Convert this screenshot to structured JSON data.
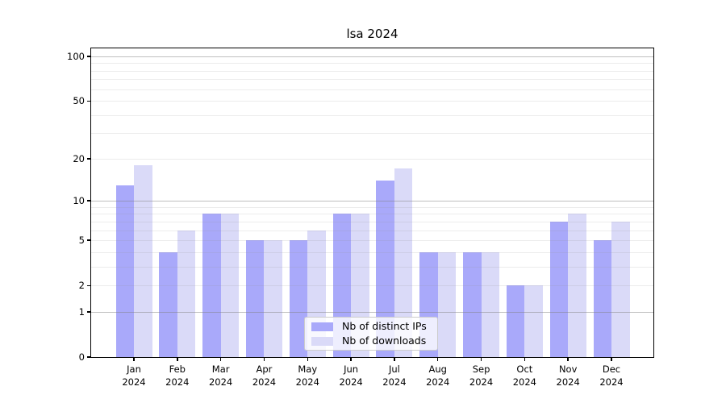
{
  "chart_data": {
    "type": "bar",
    "title": "lsa 2024",
    "categories": [
      "Jan",
      "Feb",
      "Mar",
      "Apr",
      "May",
      "Jun",
      "Jul",
      "Aug",
      "Sep",
      "Oct",
      "Nov",
      "Dec"
    ],
    "x_tick_second_line": "2024",
    "series": [
      {
        "name": "Nb of distinct IPs",
        "color": "#a9a9fa",
        "values": [
          13,
          4,
          8,
          5,
          5,
          8,
          14,
          4,
          4,
          2,
          7,
          5
        ]
      },
      {
        "name": "Nb of downloads",
        "color": "#dadaf8",
        "values": [
          18,
          6,
          8,
          5,
          6,
          8,
          17,
          4,
          4,
          2,
          8,
          7
        ]
      }
    ],
    "y_scale": "log1p",
    "ylim": [
      0,
      113
    ],
    "y_ticks": [
      100,
      50,
      20,
      10,
      5,
      2,
      1,
      0
    ],
    "y_minor_gridlines": [
      3,
      4,
      6,
      7,
      8,
      9,
      30,
      40,
      60,
      70,
      80,
      90
    ],
    "y_major_gridlines": [
      1,
      10,
      100
    ],
    "grid": true,
    "legend_position": "bottom-center-inside",
    "xlabel": "",
    "ylabel": ""
  },
  "colors": {
    "background": "#ffffff",
    "axis": "#000000",
    "grid_major": "#bdbdbd",
    "grid_minor": "#ececec",
    "legend_border": "#cccccc",
    "text": "#000000"
  }
}
